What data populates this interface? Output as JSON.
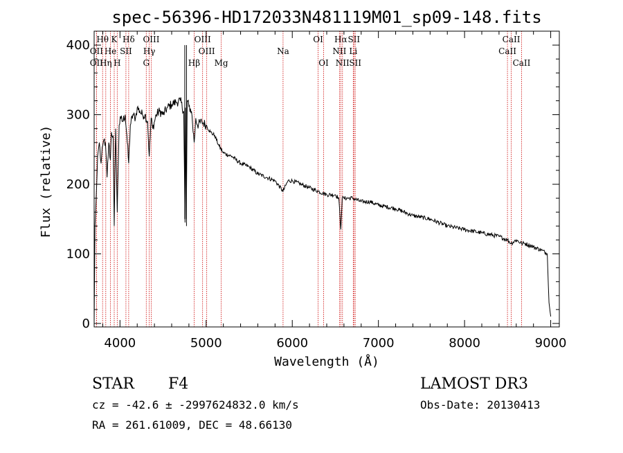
{
  "chart_data": {
    "type": "line",
    "title": "spec-56396-HD172033N481119M01_sp09-148.fits",
    "xlabel": "Wavelength (Å)",
    "ylabel": "Flux (relative)",
    "xlim": [
      3700,
      9100
    ],
    "ylim": [
      -5,
      420
    ],
    "xticks": [
      4000,
      5000,
      6000,
      7000,
      8000,
      9000
    ],
    "yticks": [
      0,
      100,
      200,
      300,
      400
    ],
    "series": [
      {
        "name": "spectrum",
        "x": [
          3700,
          3710,
          3720,
          3730,
          3740,
          3760,
          3780,
          3800,
          3820,
          3835,
          3850,
          3870,
          3889,
          3900,
          3920,
          3933,
          3950,
          3968,
          3990,
          4010,
          4030,
          4060,
          4080,
          4101,
          4120,
          4150,
          4180,
          4200,
          4230,
          4260,
          4290,
          4320,
          4340,
          4361,
          4380,
          4420,
          4460,
          4500,
          4550,
          4600,
          4650,
          4700,
          4740,
          4755,
          4760,
          4770,
          4780,
          4800,
          4830,
          4861,
          4880,
          4900,
          4950,
          5000,
          5050,
          5100,
          5150,
          5200,
          5300,
          5400,
          5500,
          5600,
          5700,
          5800,
          5893,
          5950,
          6000,
          6100,
          6200,
          6300,
          6400,
          6500,
          6540,
          6563,
          6580,
          6600,
          6700,
          6800,
          6900,
          7000,
          7200,
          7400,
          7600,
          7800,
          8000,
          8200,
          8400,
          8498,
          8542,
          8600,
          8662,
          8700,
          8800,
          8900,
          8960,
          8980,
          9000
        ],
        "y": [
          0,
          140,
          170,
          200,
          240,
          260,
          230,
          255,
          265,
          250,
          210,
          260,
          235,
          275,
          270,
          140,
          280,
          160,
          285,
          295,
          290,
          300,
          270,
          230,
          285,
          300,
          295,
          310,
          305,
          300,
          300,
          290,
          240,
          295,
          280,
          300,
          305,
          300,
          310,
          315,
          318,
          320,
          305,
          145,
          310,
          150,
          320,
          312,
          305,
          260,
          295,
          285,
          290,
          285,
          275,
          270,
          255,
          245,
          240,
          230,
          225,
          215,
          210,
          205,
          190,
          205,
          205,
          200,
          195,
          190,
          185,
          185,
          180,
          135,
          180,
          180,
          180,
          175,
          175,
          170,
          165,
          155,
          150,
          140,
          135,
          130,
          125,
          120,
          115,
          120,
          115,
          115,
          110,
          105,
          100,
          30,
          10
        ]
      }
    ],
    "line_markers": [
      {
        "label": "Hθ",
        "wavelength": 3798,
        "row": 0
      },
      {
        "label": "OII",
        "wavelength": 3727,
        "row": 1
      },
      {
        "label": "OII",
        "wavelength": 3727,
        "row": 2
      },
      {
        "label": "K",
        "wavelength": 3933,
        "row": 0
      },
      {
        "label": "He",
        "wavelength": 3889,
        "row": 1
      },
      {
        "label": "Hη",
        "wavelength": 3835,
        "row": 2
      },
      {
        "label": "H",
        "wavelength": 3968,
        "row": 2
      },
      {
        "label": "Hδ",
        "wavelength": 4101,
        "row": 0
      },
      {
        "label": "SII",
        "wavelength": 4069,
        "row": 1
      },
      {
        "label": "OIII",
        "wavelength": 4363,
        "row": 0
      },
      {
        "label": "Hγ",
        "wavelength": 4340,
        "row": 1
      },
      {
        "label": "G",
        "wavelength": 4305,
        "row": 2
      },
      {
        "label": "Hβ",
        "wavelength": 4861,
        "row": 2
      },
      {
        "label": "OIII",
        "wavelength": 4959,
        "row": 0
      },
      {
        "label": "OIII",
        "wavelength": 5007,
        "row": 1
      },
      {
        "label": "Mg",
        "wavelength": 5175,
        "row": 2
      },
      {
        "label": "Na",
        "wavelength": 5893,
        "row": 1
      },
      {
        "label": "OI",
        "wavelength": 6300,
        "row": 0
      },
      {
        "label": "OI",
        "wavelength": 6364,
        "row": 2
      },
      {
        "label": "Hα",
        "wavelength": 6563,
        "row": 0
      },
      {
        "label": "SII",
        "wavelength": 6716,
        "row": 0
      },
      {
        "label": "NII",
        "wavelength": 6548,
        "row": 1
      },
      {
        "label": "Li",
        "wavelength": 6708,
        "row": 1
      },
      {
        "label": "NII",
        "wavelength": 6583,
        "row": 2
      },
      {
        "label": "SII",
        "wavelength": 6731,
        "row": 2
      },
      {
        "label": "CaII",
        "wavelength": 8542,
        "row": 0
      },
      {
        "label": "CaII",
        "wavelength": 8498,
        "row": 1
      },
      {
        "label": "CaII",
        "wavelength": 8662,
        "row": 2
      }
    ]
  },
  "info": {
    "class_label": "STAR",
    "subclass": "F4",
    "survey": "LAMOST DR3",
    "cz_text": "cz = -42.6 ± -2997624832.0 km/s",
    "obs_date": "Obs-Date: 20130413",
    "radec_text": "RA = 261.61009, DEC =  48.66130"
  }
}
